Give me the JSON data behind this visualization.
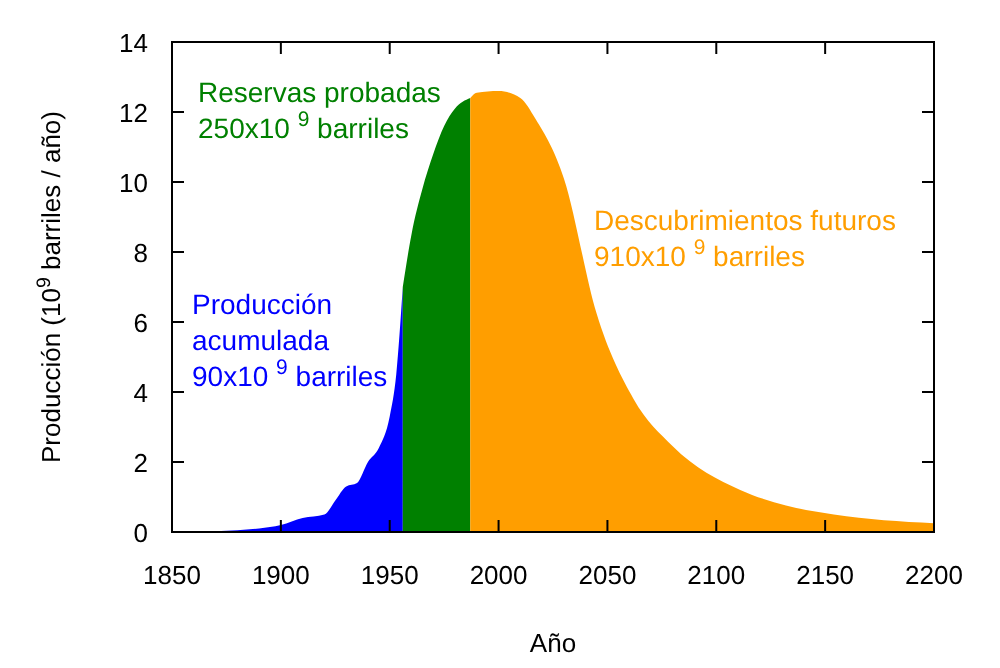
{
  "chart_data": {
    "type": "area",
    "xlabel": "Año",
    "ylabel": "Producción (10$^{9}$ barriles / año)",
    "xlim": [
      1850,
      2200
    ],
    "xticks": [
      1850,
      1900,
      1950,
      2000,
      2050,
      2100,
      2150,
      2200
    ],
    "ylim": [
      0,
      14
    ],
    "yticks": [
      0,
      2,
      4,
      6,
      8,
      10,
      12,
      14
    ],
    "series": [
      {
        "color": "#0000ff",
        "x": [
          1860,
          1870,
          1880,
          1890,
          1900,
          1910,
          1920,
          1925,
          1930,
          1935,
          1940,
          1945,
          1950,
          1953,
          1956
        ],
        "values": [
          0,
          0.02,
          0.05,
          0.1,
          0.2,
          0.4,
          0.5,
          0.9,
          1.3,
          1.4,
          2,
          2.4,
          3.3,
          4.5,
          7
        ]
      },
      {
        "color": "#008000",
        "x": [
          1956,
          1960,
          1965,
          1970,
          1975,
          1980,
          1987
        ],
        "values": [
          7,
          8.5,
          9.8,
          10.8,
          11.6,
          12.1,
          12.4
        ]
      },
      {
        "color": "#ff9e00",
        "x": [
          1987,
          1990,
          2000,
          2010,
          2017,
          2030,
          2045,
          2062,
          2080,
          2111,
          2132,
          2154,
          2200
        ],
        "values": [
          12.4,
          12.55,
          12.6,
          12.4,
          11.8,
          10.1,
          6.25,
          3.8,
          2.45,
          1.2,
          0.76,
          0.5,
          0.25
        ]
      }
    ],
    "annotations": [
      "Producción\nacumulada\n90x10 $^{9}$ barriles",
      "Reservas probadas\n250x10 $^{9}$ barriles",
      "Descubrimientos futuros\n910x10 $^{9}$ barriles"
    ]
  }
}
